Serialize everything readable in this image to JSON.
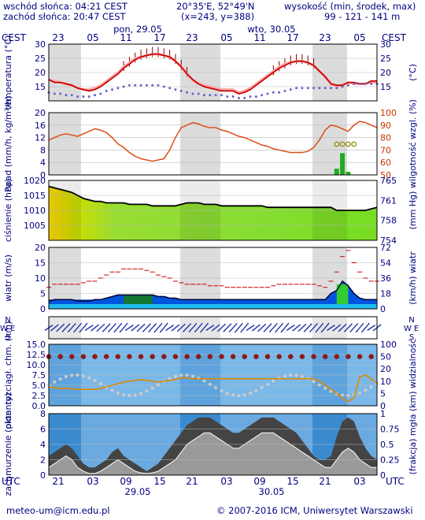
{
  "header": {
    "sunrise": "wschód słońca: 04:21 CEST",
    "sunset": "zachód słońca: 20:47 CEST",
    "coords": "20°35'E, 52°49'N",
    "grid": "(x=243, y=388)",
    "elev_title": "wysokość (min, środek, max)",
    "elev_values": "99 - 121 - 141 m"
  },
  "footer": {
    "email": "meteo-um@icm.edu.pl",
    "copyright": "© 2007-2016 ICM, Uniwersytet Warszawski"
  },
  "chart_data": {
    "type": "meteogram",
    "timezone_top": "CEST",
    "timezone_bottom": "UTC",
    "day_labels_top": [
      "pon, 29.05",
      "wto, 30.05"
    ],
    "hours_top": [
      "23",
      "05",
      "11",
      "17",
      "23",
      "05",
      "11",
      "17",
      "23",
      "05"
    ],
    "day_labels_bottom": [
      "29.05",
      "30.05"
    ],
    "hours_bottom": [
      "21",
      "03",
      "09",
      "15",
      "21",
      "03",
      "09",
      "15",
      "21",
      "03"
    ],
    "night_shading": "grey bands",
    "panels": [
      {
        "name": "temperature",
        "ylabel_left": "temperatura (°C)",
        "ylabel_right": "(°C)",
        "ylim": [
          10,
          30
        ],
        "ticks": [
          15,
          20,
          25,
          30
        ],
        "series": [
          {
            "values": [
              17.5,
              16.5,
              16.5,
              16.0,
              15.5,
              14.5,
              14.0,
              13.5,
              14.0,
              15.0,
              16.5,
              18.0,
              19.5,
              21.5,
              23.0,
              24.5,
              25.5,
              26.0,
              26.5,
              26.5,
              26.0,
              25.5,
              24.0,
              22.0,
              19.5,
              17.5,
              16.0,
              15.0,
              14.5,
              14.0,
              13.5,
              13.5,
              13.5,
              12.5,
              13.0,
              14.0,
              15.5,
              17.0,
              18.5,
              20.0,
              21.5,
              22.5,
              23.5,
              24.0,
              24.0,
              23.5,
              22.5,
              20.5,
              18.5,
              16.0,
              15.5,
              15.5,
              16.5,
              16.5,
              16.0,
              16.0,
              17.0,
              17.0
            ]
          },
          {
            "values": [
              17.5,
              17.0,
              16.5,
              16.0,
              15.5,
              14.5,
              14.0,
              14.0,
              14.5,
              15.5,
              17.0,
              18.5,
              20.0,
              22.0,
              23.5,
              25.0,
              25.5,
              26.0,
              26.5,
              26.5,
              26.0,
              25.5,
              24.0,
              22.0,
              19.5,
              17.0,
              16.0,
              15.5,
              15.0,
              14.5,
              14.0,
              14.0,
              14.0,
              13.0,
              13.5,
              14.5,
              16.0,
              17.5,
              19.0,
              20.5,
              22.0,
              23.0,
              23.5,
              24.0,
              24.0,
              23.5,
              22.5,
              20.5,
              18.5,
              16.0,
              15.0,
              15.5,
              16.5,
              16.0,
              16.0,
              16.0,
              16.5,
              16.5
            ]
          },
          {
            "values": [
              13.0,
              12.5,
              12.5,
              12.0,
              12.0,
              11.5,
              11.5,
              11.5,
              12.0,
              12.5,
              13.5,
              14.0,
              14.5,
              15.0,
              15.5,
              15.5,
              15.5,
              15.5,
              15.5,
              15.5,
              15.0,
              14.5,
              14.0,
              13.5,
              13.0,
              12.5,
              12.5,
              12.0,
              12.0,
              12.0,
              12.0,
              11.5,
              11.5,
              11.0,
              11.0,
              11.5,
              11.5,
              12.0,
              12.5,
              13.0,
              13.0,
              13.5,
              14.0,
              14.5,
              14.5,
              14.5,
              14.5,
              14.5,
              14.5,
              14.5,
              14.5,
              15.0,
              15.5,
              16.0,
              16.0,
              16.0,
              16.0,
              16.0
            ]
          }
        ]
      },
      {
        "name": "precipitation_humidity",
        "ylabel_left": "opad (mm/h, kg/m²/h)",
        "ylabel_right": "wilgotność wzgl. (%)",
        "ylim_left": [
          0,
          20
        ],
        "ticks_left": [
          0,
          4,
          8,
          12,
          16,
          20
        ],
        "ylim_right": [
          50,
          100
        ],
        "ticks_right": [
          50,
          60,
          70,
          80,
          90,
          100
        ],
        "humidity": [
          78,
          80,
          82,
          83,
          82,
          81,
          83,
          85,
          87,
          86,
          84,
          80,
          75,
          72,
          68,
          65,
          63,
          62,
          61,
          62,
          63,
          70,
          80,
          88,
          90,
          92,
          91,
          89,
          88,
          88,
          86,
          85,
          83,
          81,
          80,
          78,
          76,
          74,
          73,
          71,
          70,
          69,
          68,
          68,
          68,
          69,
          72,
          78,
          86,
          90,
          89,
          87,
          85,
          90,
          93,
          92,
          90,
          88
        ],
        "precip": [
          0,
          0,
          0,
          0,
          0,
          0,
          0,
          0,
          0,
          0,
          0,
          0,
          0,
          0,
          0,
          0,
          0,
          0,
          0,
          0,
          0,
          0,
          0,
          0,
          0,
          0,
          0,
          0,
          0,
          0,
          0,
          0,
          0,
          0,
          0,
          0,
          0,
          0,
          0,
          0,
          0,
          0,
          0,
          0,
          0,
          0,
          0,
          0,
          0,
          0,
          2,
          7,
          1,
          0,
          0,
          0,
          0,
          0
        ],
        "precip_markers": "circles"
      },
      {
        "name": "pressure",
        "ylabel_left": "ciśnienie (hPa)",
        "ylabel_right": "(mm Hg)",
        "ylim_left": [
          1000,
          1020
        ],
        "ticks_left": [
          1005,
          1010,
          1015,
          1020
        ],
        "ticks_right": [
          "754",
          "758",
          "761",
          "765"
        ],
        "values": [
          1018,
          1017.5,
          1017,
          1016.5,
          1016,
          1015,
          1014,
          1013.5,
          1013,
          1013,
          1012.5,
          1012.5,
          1012.5,
          1012.5,
          1012,
          1012,
          1012,
          1012,
          1011.5,
          1011.5,
          1011.5,
          1011.5,
          1011.5,
          1012,
          1012.5,
          1012.5,
          1012.5,
          1012,
          1012,
          1012,
          1011.5,
          1011.5,
          1011.5,
          1011.5,
          1011.5,
          1011.5,
          1011.5,
          1011.5,
          1011,
          1011,
          1011,
          1011,
          1011,
          1011,
          1011,
          1011,
          1011,
          1011,
          1011,
          1011,
          1010,
          1010,
          1010,
          1010,
          1010,
          1010,
          1010.5,
          1011
        ]
      },
      {
        "name": "wind",
        "ylabel_left": "wiatr (m/s)",
        "ylabel_right": "(km/h) wiatr",
        "ylim_left": [
          0,
          20
        ],
        "ticks_left": [
          0,
          5,
          10,
          15,
          20
        ],
        "ticks_right": [
          "0",
          "18",
          "36",
          "54",
          "72"
        ],
        "speed": [
          2.5,
          3,
          3,
          3,
          3,
          2.5,
          2.5,
          2.5,
          3,
          3,
          3.5,
          4,
          4.5,
          4.5,
          4.5,
          4.5,
          4.5,
          4.5,
          4.5,
          4,
          4,
          3.5,
          3.5,
          3,
          3,
          3,
          3,
          3,
          3,
          3,
          3,
          3,
          3,
          3,
          3,
          3,
          3,
          3,
          3,
          3,
          3,
          3,
          3,
          3,
          3,
          3,
          3,
          3,
          3,
          5,
          6,
          9,
          7.5,
          5,
          3.5,
          3,
          3,
          3
        ],
        "gusts": [
          7,
          8,
          8,
          8,
          8,
          8,
          8.5,
          9,
          9,
          10,
          11,
          12,
          12,
          13,
          13,
          13,
          13,
          12.5,
          12,
          11,
          10.5,
          10,
          9,
          8.5,
          8,
          8,
          8,
          8,
          7.5,
          7.5,
          7.5,
          7,
          7,
          7,
          7,
          7,
          7,
          7,
          7,
          7.5,
          8,
          8,
          8,
          8,
          8,
          8,
          8,
          7.5,
          7,
          9,
          12,
          17,
          19,
          15,
          12,
          10,
          9,
          9
        ]
      },
      {
        "name": "wind_direction",
        "labels": [
          "N",
          "W",
          "E",
          "S"
        ],
        "arrows": "blue wind arrows"
      },
      {
        "name": "visibility",
        "ylabel_left": "pion. rozciągł. chm. (km)",
        "ylabel_right": "(km) widzialność",
        "ylim_left": [
          0,
          15
        ],
        "ticks_left": [
          "0.0",
          "2.5",
          "5.0",
          "7.5",
          "10.0",
          "12.5",
          "15.0"
        ],
        "ticks_right": [
          "0",
          "5",
          "10",
          "20",
          "50",
          "100"
        ],
        "visibility_line": [
          4.6,
          4.4,
          4.2,
          4.2,
          4.2,
          4.0,
          4.0,
          4.0,
          4.0,
          4.2,
          4.6,
          5.0,
          5.4,
          5.8,
          6.0,
          6.2,
          6.4,
          6.2,
          6.0,
          5.8,
          6.0,
          6.2,
          6.4,
          6.8,
          6.8,
          6.6,
          6.6,
          6.6,
          6.6,
          6.6,
          6.6,
          6.6,
          6.6,
          6.6,
          6.6,
          6.6,
          6.6,
          6.6,
          6.6,
          6.6,
          6.6,
          6.6,
          6.6,
          6.6,
          6.6,
          6.6,
          6.6,
          6.0,
          5.0,
          4.0,
          3.0,
          2.0,
          1.0,
          2.0,
          7.0,
          7.5,
          6.5,
          5.5
        ],
        "cloud_dots": "grey and dark-red markers"
      },
      {
        "name": "cloudiness",
        "ylabel_left": "zachmurzenie (oktanty)",
        "ylabel_right": "(frakcja) mgła",
        "ylim_left": [
          0,
          8
        ],
        "ticks_left": [
          0,
          2,
          4,
          6,
          8
        ],
        "ylim_right": [
          0,
          1
        ],
        "ticks_right": [
          "0",
          "0.25",
          "0.5",
          "0.75",
          "1"
        ],
        "cloud_total": [
          2.5,
          3,
          3.5,
          4,
          3.5,
          2.5,
          1.5,
          1,
          1,
          1.5,
          2,
          3,
          3.5,
          2.5,
          2,
          1.5,
          1,
          0.5,
          1,
          1.5,
          2.5,
          3.5,
          4.5,
          5.5,
          6.5,
          7,
          7.5,
          7.5,
          7.5,
          7,
          6.5,
          6,
          5.5,
          5.5,
          6,
          6.5,
          7,
          7.5,
          7.5,
          7.5,
          7,
          6.5,
          6,
          5.5,
          4.5,
          3.5,
          2.5,
          2,
          2,
          2.5,
          5,
          7,
          7.5,
          7,
          5,
          3.5,
          2.5,
          2
        ],
        "cloud_low": [
          1,
          1.5,
          2,
          2.5,
          2,
          1,
          0.5,
          0.2,
          0.2,
          0.5,
          1,
          1.5,
          2,
          1.5,
          1,
          0.5,
          0.3,
          0.2,
          0.3,
          0.5,
          1,
          1.5,
          2,
          3,
          4,
          4.5,
          5,
          5.5,
          5.5,
          5,
          4.5,
          4,
          3.5,
          3.5,
          4,
          4.5,
          5,
          5.5,
          5.5,
          5.5,
          5,
          4.5,
          4,
          3.5,
          3,
          2.5,
          2,
          1.5,
          1,
          1,
          2,
          3,
          3.5,
          3,
          2,
          1.5,
          1,
          1
        ]
      }
    ]
  }
}
